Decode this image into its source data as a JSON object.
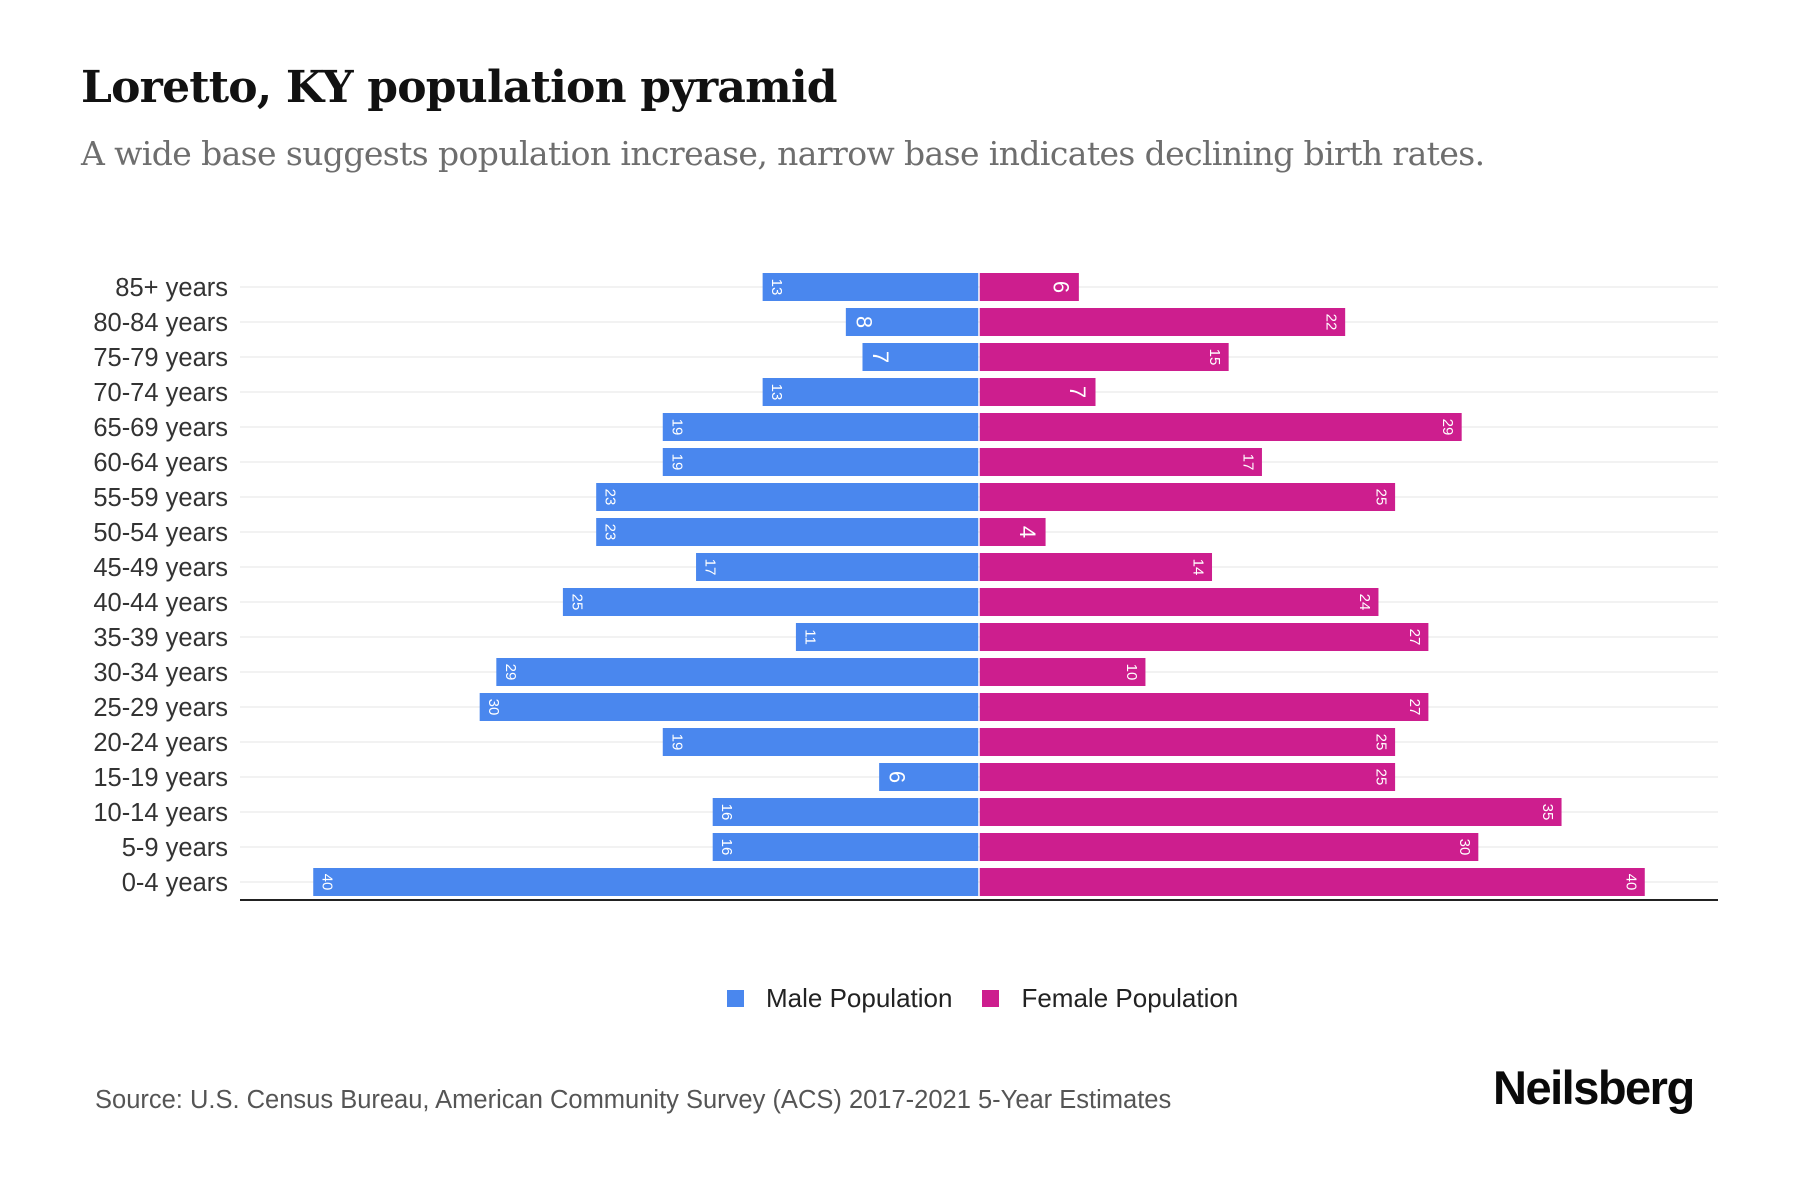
{
  "header": {
    "title": "Loretto, KY population pyramid",
    "subtitle": "A wide base suggests population increase, narrow base indicates declining birth rates."
  },
  "colors": {
    "male": "#4a87ee",
    "female": "#cd1e8e",
    "gridline": "#eeeeee",
    "axis": "#222222",
    "axis_label": "#333333",
    "value_label": "#ffffff"
  },
  "chart_data": {
    "type": "bar",
    "orientation": "horizontal-diverging",
    "title": "Loretto, KY population pyramid",
    "subtitle": "A wide base suggests population increase, narrow base indicates declining birth rates.",
    "xlabel": "",
    "ylabel": "",
    "categories": [
      "85+ years",
      "80-84 years",
      "75-79 years",
      "70-74 years",
      "65-69 years",
      "60-64 years",
      "55-59 years",
      "50-54 years",
      "45-49 years",
      "40-44 years",
      "35-39 years",
      "30-34 years",
      "25-29 years",
      "20-24 years",
      "15-19 years",
      "10-14 years",
      "5-9 years",
      "0-4 years"
    ],
    "series": [
      {
        "name": "Male Population",
        "side": "left",
        "values": [
          13,
          8,
          7,
          13,
          19,
          19,
          23,
          23,
          17,
          25,
          11,
          29,
          30,
          19,
          6,
          16,
          16,
          40
        ]
      },
      {
        "name": "Female Population",
        "side": "right",
        "values": [
          6,
          22,
          15,
          7,
          29,
          17,
          25,
          4,
          14,
          24,
          27,
          10,
          27,
          25,
          25,
          35,
          30,
          40
        ]
      }
    ],
    "xlim": [
      -44.4,
      44.4
    ],
    "grid": true,
    "data_labels": true,
    "legend": "bottom-center"
  },
  "legend": {
    "items": [
      {
        "label": "Male Population",
        "color": "#4a87ee"
      },
      {
        "label": "Female Population",
        "color": "#cd1e8e"
      }
    ]
  },
  "footer": {
    "source": "Source: U.S. Census Bureau, American Community Survey (ACS) 2017-2021 5-Year Estimates",
    "brand": "Neilsberg"
  }
}
